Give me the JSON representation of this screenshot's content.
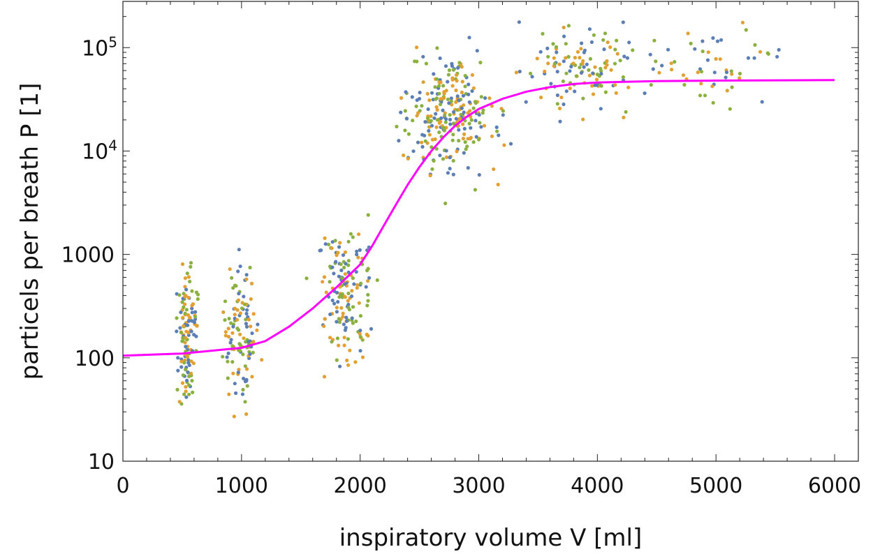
{
  "chart_data": {
    "type": "scatter",
    "title": "",
    "xlabel": "inspiratory volume V [ml]",
    "ylabel": "particels per breath P [1]",
    "x_scale": "linear",
    "y_scale": "log",
    "xlim": [
      0,
      6200
    ],
    "ylim": [
      10,
      280000
    ],
    "x_ticks": [
      0,
      1000,
      2000,
      3000,
      4000,
      5000,
      6000
    ],
    "x_tick_labels": [
      "0",
      "1000",
      "2000",
      "3000",
      "4000",
      "5000",
      "6000"
    ],
    "y_ticks": [
      10,
      100,
      1000,
      10000,
      100000
    ],
    "y_tick_labels": [
      "10",
      "100",
      "1000",
      "10^4",
      "10^5"
    ],
    "grid": false,
    "legend": "none",
    "series_colors": [
      "#5b7fb5",
      "#e3a032",
      "#8ab040"
    ],
    "fit_color": "#ff00ff",
    "fit_curve": {
      "x": [
        0,
        500,
        1000,
        1200,
        1400,
        1600,
        1800,
        2000,
        2100,
        2200,
        2300,
        2400,
        2500,
        2600,
        2700,
        2800,
        2900,
        3000,
        3200,
        3400,
        3600,
        3800,
        4000,
        4500,
        5000,
        6000
      ],
      "y": [
        105,
        110,
        125,
        145,
        200,
        300,
        480,
        800,
        1200,
        1900,
        3000,
        4700,
        7000,
        10000,
        13500,
        17500,
        21500,
        25500,
        32000,
        37500,
        41500,
        44500,
        46000,
        47500,
        48000,
        48500
      ]
    },
    "clusters": [
      {
        "x_center": 540,
        "x_spread": 60,
        "logy_center": 2.25,
        "logy_spread": 0.45,
        "count": 130
      },
      {
        "x_center": 990,
        "x_spread": 90,
        "logy_center": 2.2,
        "logy_spread": 0.42,
        "count": 120
      },
      {
        "x_center": 1870,
        "x_spread": 160,
        "logy_center": 2.6,
        "logy_spread": 0.4,
        "count": 160
      },
      {
        "x_center": 2750,
        "x_spread": 260,
        "logy_center": 4.35,
        "logy_spread": 0.38,
        "count": 270
      },
      {
        "x_center": 3900,
        "x_spread": 350,
        "logy_center": 4.8,
        "logy_spread": 0.25,
        "count": 130
      },
      {
        "x_center": 4900,
        "x_spread": 450,
        "logy_center": 4.85,
        "logy_spread": 0.25,
        "count": 55
      }
    ]
  }
}
